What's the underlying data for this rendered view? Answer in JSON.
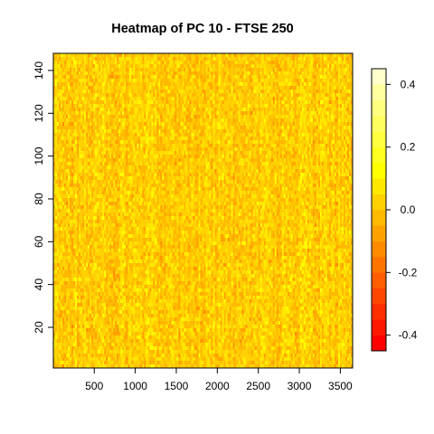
{
  "chart_data": {
    "type": "heatmap",
    "title": "Heatmap of PC 10  - FTSE 250",
    "xlabel": "",
    "ylabel": "",
    "xlim": [
      1,
      3650
    ],
    "ylim": [
      1,
      148
    ],
    "x_ticks": [
      500,
      1000,
      1500,
      2000,
      2500,
      3000,
      3500
    ],
    "y_ticks": [
      20,
      40,
      60,
      80,
      100,
      120,
      140
    ],
    "n_cols": 3650,
    "n_rows": 148,
    "value_range": [
      -0.45,
      0.45
    ],
    "colorbar": {
      "breaks": [
        -0.45,
        -0.4,
        -0.35,
        -0.3,
        -0.25,
        -0.2,
        -0.15,
        -0.1,
        -0.05,
        0.0,
        0.05,
        0.1,
        0.15,
        0.2,
        0.25,
        0.3,
        0.35,
        0.4,
        0.45
      ],
      "colors": [
        "#FF0000",
        "#FF1700",
        "#FF2E00",
        "#FF4600",
        "#FF5D00",
        "#FF7400",
        "#FF8B00",
        "#FFA200",
        "#FFB900",
        "#FFD100",
        "#FFE800",
        "#FFFF00",
        "#FFFF20",
        "#FFFF40",
        "#FFFF60",
        "#FFFF80",
        "#FFFFA0",
        "#FFFFCC"
      ],
      "ticks": [
        -0.4,
        -0.2,
        0.0,
        0.2,
        0.4
      ],
      "tick_labels": [
        "-0.4",
        "-0.2",
        "0.0",
        "0.2",
        "0.4"
      ]
    },
    "grid": false,
    "legend": "right"
  }
}
